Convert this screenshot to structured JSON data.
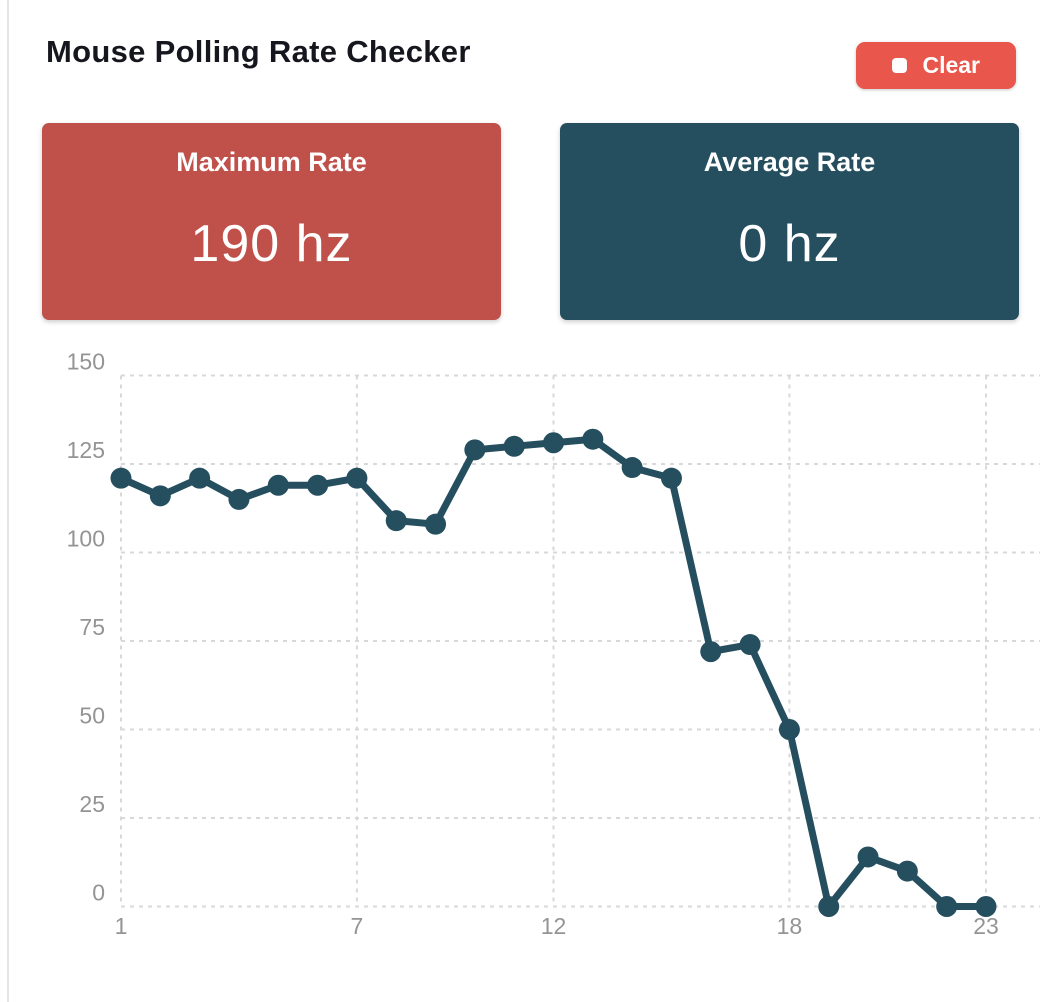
{
  "page": {
    "title": "Mouse Polling Rate Checker"
  },
  "header": {
    "clear_label": "Clear"
  },
  "stats": {
    "maximum": {
      "label": "Maximum Rate",
      "value": "190 hz"
    },
    "average": {
      "label": "Average Rate",
      "value": "0 hz"
    }
  },
  "colors": {
    "accent-red": "#e8564c",
    "card-red": "#c0504a",
    "card-teal": "#254f5f",
    "line": "#254f5f",
    "grid": "#d8d8d8",
    "axis-label": "#949494",
    "title": "#16161f"
  },
  "chart_data": {
    "type": "line",
    "x": [
      1,
      2,
      3,
      4,
      5,
      6,
      7,
      8,
      9,
      10,
      11,
      12,
      13,
      14,
      15,
      16,
      17,
      18,
      19,
      20,
      21,
      22,
      23
    ],
    "values": [
      121,
      116,
      121,
      115,
      119,
      119,
      121,
      109,
      108,
      129,
      130,
      131,
      132,
      124,
      121,
      72,
      74,
      50,
      0,
      14,
      10,
      0,
      0
    ],
    "series_name": "polling-rate-hz",
    "title": "",
    "xlabel": "",
    "ylabel": "",
    "ylim": [
      0,
      150
    ],
    "y_ticks": [
      0,
      25,
      50,
      75,
      100,
      125,
      150
    ],
    "x_ticks": [
      1,
      7,
      12,
      18,
      23
    ],
    "grid": "dashed",
    "legend": "none",
    "line_color": "#254f5f",
    "point_radius": 10.5
  }
}
